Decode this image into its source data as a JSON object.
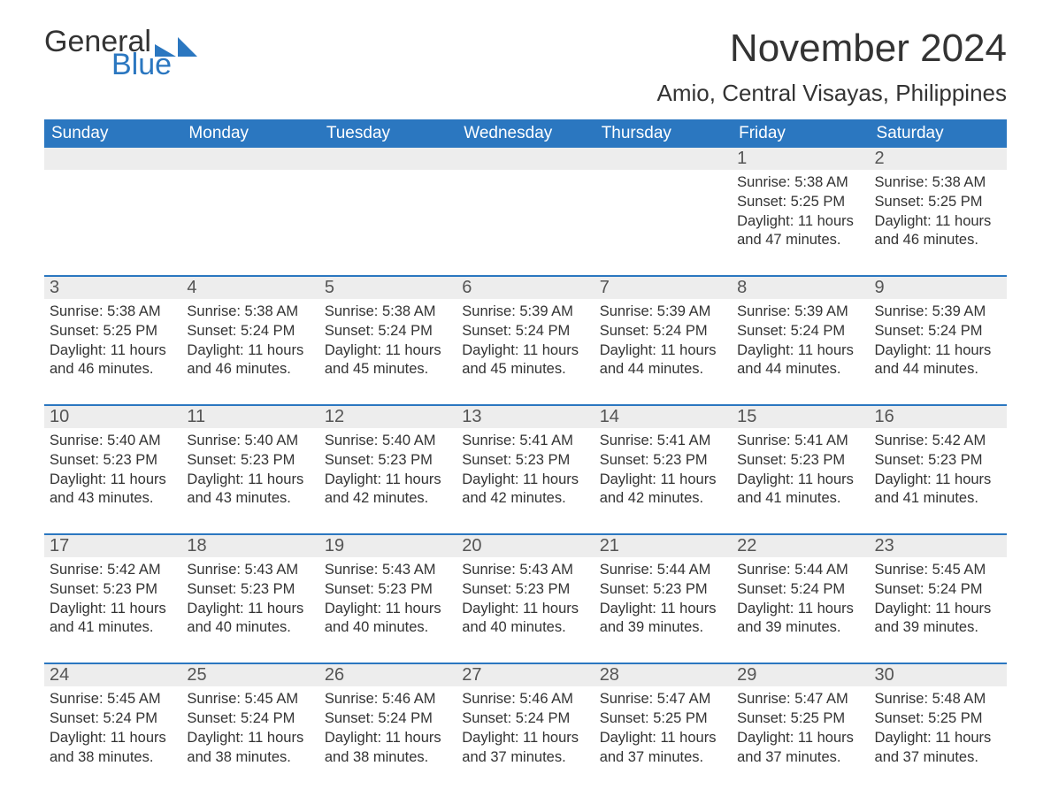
{
  "colors": {
    "brand_blue": "#2b77c0",
    "text": "#333333",
    "muted_text": "#555555",
    "daynum_bg": "#ededed",
    "background": "#ffffff"
  },
  "typography": {
    "month_title_fontsize": 44,
    "location_fontsize": 26,
    "weekday_fontsize": 19,
    "daynum_fontsize": 20,
    "body_fontsize": 16.5,
    "logo_fontsize": 34
  },
  "logo": {
    "word1": "General",
    "word2": "Blue"
  },
  "title": "November 2024",
  "location": "Amio, Central Visayas, Philippines",
  "weekdays": [
    "Sunday",
    "Monday",
    "Tuesday",
    "Wednesday",
    "Thursday",
    "Friday",
    "Saturday"
  ],
  "labels": {
    "sunrise": "Sunrise:",
    "sunset": "Sunset:",
    "daylight": "Daylight:"
  },
  "weeks": [
    [
      null,
      null,
      null,
      null,
      null,
      {
        "day": "1",
        "sunrise": "5:38 AM",
        "sunset": "5:25 PM",
        "daylight": "11 hours and 47 minutes."
      },
      {
        "day": "2",
        "sunrise": "5:38 AM",
        "sunset": "5:25 PM",
        "daylight": "11 hours and 46 minutes."
      }
    ],
    [
      {
        "day": "3",
        "sunrise": "5:38 AM",
        "sunset": "5:25 PM",
        "daylight": "11 hours and 46 minutes."
      },
      {
        "day": "4",
        "sunrise": "5:38 AM",
        "sunset": "5:24 PM",
        "daylight": "11 hours and 46 minutes."
      },
      {
        "day": "5",
        "sunrise": "5:38 AM",
        "sunset": "5:24 PM",
        "daylight": "11 hours and 45 minutes."
      },
      {
        "day": "6",
        "sunrise": "5:39 AM",
        "sunset": "5:24 PM",
        "daylight": "11 hours and 45 minutes."
      },
      {
        "day": "7",
        "sunrise": "5:39 AM",
        "sunset": "5:24 PM",
        "daylight": "11 hours and 44 minutes."
      },
      {
        "day": "8",
        "sunrise": "5:39 AM",
        "sunset": "5:24 PM",
        "daylight": "11 hours and 44 minutes."
      },
      {
        "day": "9",
        "sunrise": "5:39 AM",
        "sunset": "5:24 PM",
        "daylight": "11 hours and 44 minutes."
      }
    ],
    [
      {
        "day": "10",
        "sunrise": "5:40 AM",
        "sunset": "5:23 PM",
        "daylight": "11 hours and 43 minutes."
      },
      {
        "day": "11",
        "sunrise": "5:40 AM",
        "sunset": "5:23 PM",
        "daylight": "11 hours and 43 minutes."
      },
      {
        "day": "12",
        "sunrise": "5:40 AM",
        "sunset": "5:23 PM",
        "daylight": "11 hours and 42 minutes."
      },
      {
        "day": "13",
        "sunrise": "5:41 AM",
        "sunset": "5:23 PM",
        "daylight": "11 hours and 42 minutes."
      },
      {
        "day": "14",
        "sunrise": "5:41 AM",
        "sunset": "5:23 PM",
        "daylight": "11 hours and 42 minutes."
      },
      {
        "day": "15",
        "sunrise": "5:41 AM",
        "sunset": "5:23 PM",
        "daylight": "11 hours and 41 minutes."
      },
      {
        "day": "16",
        "sunrise": "5:42 AM",
        "sunset": "5:23 PM",
        "daylight": "11 hours and 41 minutes."
      }
    ],
    [
      {
        "day": "17",
        "sunrise": "5:42 AM",
        "sunset": "5:23 PM",
        "daylight": "11 hours and 41 minutes."
      },
      {
        "day": "18",
        "sunrise": "5:43 AM",
        "sunset": "5:23 PM",
        "daylight": "11 hours and 40 minutes."
      },
      {
        "day": "19",
        "sunrise": "5:43 AM",
        "sunset": "5:23 PM",
        "daylight": "11 hours and 40 minutes."
      },
      {
        "day": "20",
        "sunrise": "5:43 AM",
        "sunset": "5:23 PM",
        "daylight": "11 hours and 40 minutes."
      },
      {
        "day": "21",
        "sunrise": "5:44 AM",
        "sunset": "5:23 PM",
        "daylight": "11 hours and 39 minutes."
      },
      {
        "day": "22",
        "sunrise": "5:44 AM",
        "sunset": "5:24 PM",
        "daylight": "11 hours and 39 minutes."
      },
      {
        "day": "23",
        "sunrise": "5:45 AM",
        "sunset": "5:24 PM",
        "daylight": "11 hours and 39 minutes."
      }
    ],
    [
      {
        "day": "24",
        "sunrise": "5:45 AM",
        "sunset": "5:24 PM",
        "daylight": "11 hours and 38 minutes."
      },
      {
        "day": "25",
        "sunrise": "5:45 AM",
        "sunset": "5:24 PM",
        "daylight": "11 hours and 38 minutes."
      },
      {
        "day": "26",
        "sunrise": "5:46 AM",
        "sunset": "5:24 PM",
        "daylight": "11 hours and 38 minutes."
      },
      {
        "day": "27",
        "sunrise": "5:46 AM",
        "sunset": "5:24 PM",
        "daylight": "11 hours and 37 minutes."
      },
      {
        "day": "28",
        "sunrise": "5:47 AM",
        "sunset": "5:25 PM",
        "daylight": "11 hours and 37 minutes."
      },
      {
        "day": "29",
        "sunrise": "5:47 AM",
        "sunset": "5:25 PM",
        "daylight": "11 hours and 37 minutes."
      },
      {
        "day": "30",
        "sunrise": "5:48 AM",
        "sunset": "5:25 PM",
        "daylight": "11 hours and 37 minutes."
      }
    ]
  ]
}
